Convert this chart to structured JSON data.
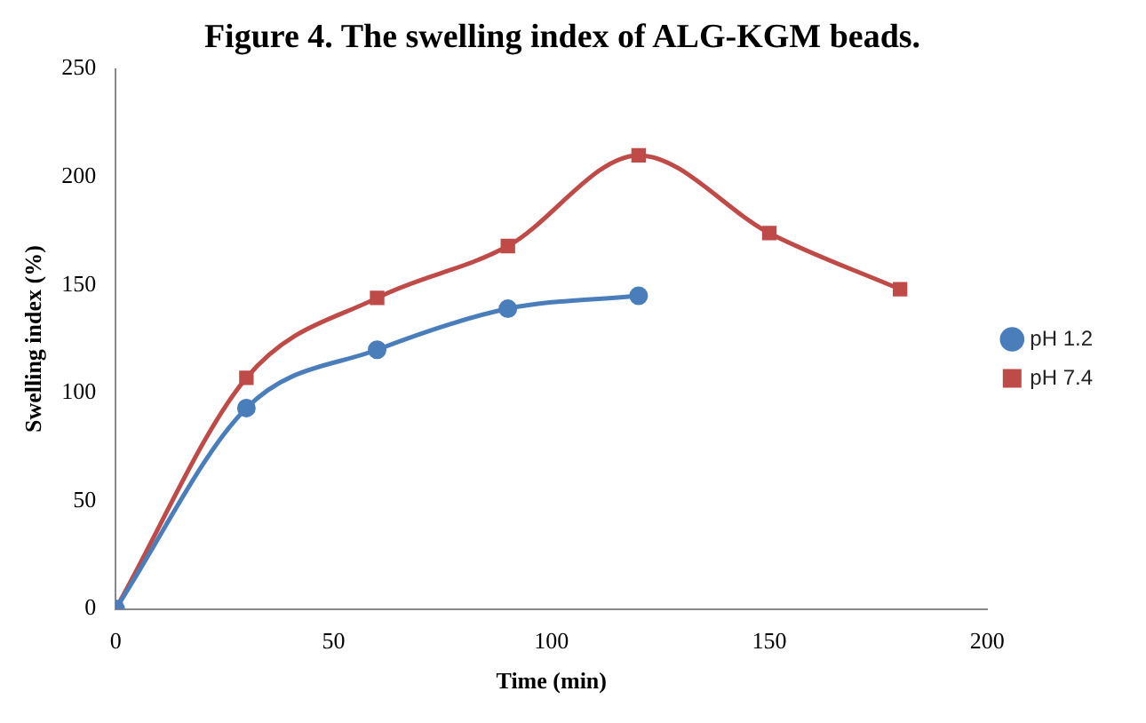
{
  "chart_data": {
    "type": "line",
    "title": "Figure 4. The swelling index of ALG-KGM beads.",
    "xlabel": "Time (min)",
    "ylabel": "Swelling index (%)",
    "series": [
      {
        "name": "pH 1.2",
        "color": "#4a7ebb",
        "x": [
          0,
          30,
          60,
          90,
          120
        ],
        "values": [
          0,
          93,
          120,
          139,
          145
        ]
      },
      {
        "name": "pH 7.4",
        "color": "#be4b48",
        "x": [
          0,
          30,
          60,
          90,
          120,
          150,
          180
        ],
        "values": [
          0,
          107,
          144,
          168,
          210,
          174,
          148
        ],
        "marker": "square"
      }
    ],
    "xlim": [
      0,
      200
    ],
    "xticks": [
      0,
      50,
      100,
      150,
      200
    ],
    "ylim": [
      0,
      250
    ],
    "yticks": [
      0,
      50,
      100,
      150,
      200,
      250
    ],
    "grid": false,
    "legend": "right",
    "marker": "circle",
    "line_style": "solid"
  }
}
